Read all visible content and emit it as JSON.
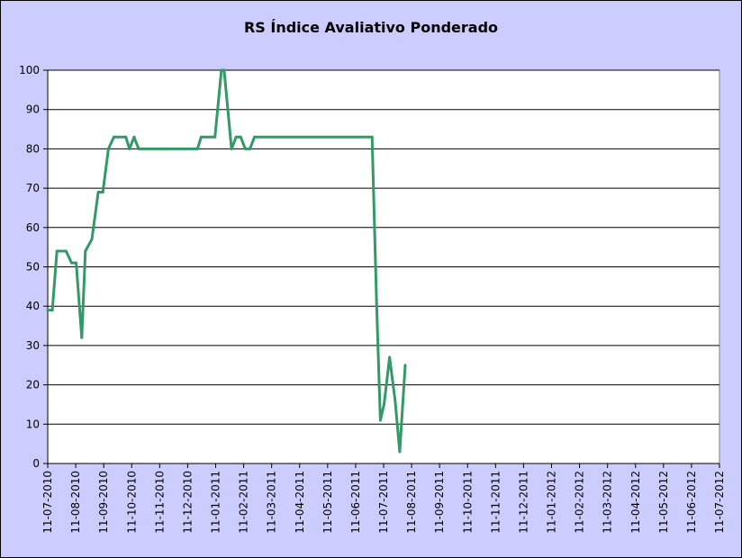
{
  "chart_data": {
    "type": "line",
    "title": "RS Índice Avaliativo Ponderado",
    "xlabel": "",
    "ylabel": "",
    "ylim": [
      0,
      100
    ],
    "y_ticks": [
      0,
      10,
      20,
      30,
      40,
      50,
      60,
      70,
      80,
      90,
      100
    ],
    "x_range": [
      "2010-07-11",
      "2012-07-11"
    ],
    "x_tick_labels": [
      "11-07-2010",
      "11-08-2010",
      "11-09-2010",
      "11-10-2010",
      "11-11-2010",
      "11-12-2010",
      "11-01-2011",
      "11-02-2011",
      "11-03-2011",
      "11-04-2011",
      "11-05-2011",
      "11-06-2011",
      "11-07-2011",
      "11-08-2011",
      "11-09-2011",
      "11-10-2011",
      "11-11-2011",
      "11-12-2011",
      "11-01-2012",
      "11-02-2012",
      "11-03-2012",
      "11-04-2012",
      "11-05-2012",
      "11-06-2012",
      "11-07-2012"
    ],
    "grid": true,
    "legend": "none",
    "colors": {
      "line": "#339966",
      "plot_background": "#ffffff",
      "chart_background": "#ccccff",
      "gridline": "#000000"
    },
    "series": [
      {
        "values": [
          [
            "2010-07-11",
            39
          ],
          [
            "2010-07-16",
            39
          ],
          [
            "2010-07-21",
            54
          ],
          [
            "2010-07-31",
            54
          ],
          [
            "2010-08-06",
            51
          ],
          [
            "2010-08-11",
            51
          ],
          [
            "2010-08-17",
            32
          ],
          [
            "2010-08-21",
            54
          ],
          [
            "2010-08-28",
            57
          ],
          [
            "2010-09-04",
            69
          ],
          [
            "2010-09-09",
            69
          ],
          [
            "2010-09-15",
            80
          ],
          [
            "2010-09-21",
            83
          ],
          [
            "2010-10-04",
            83
          ],
          [
            "2010-10-08",
            80
          ],
          [
            "2010-10-13",
            83
          ],
          [
            "2010-10-18",
            80
          ],
          [
            "2010-11-11",
            80
          ],
          [
            "2010-12-21",
            80
          ],
          [
            "2010-12-25",
            83
          ],
          [
            "2011-01-09",
            83
          ],
          [
            "2011-01-16",
            100
          ],
          [
            "2011-01-19",
            100
          ],
          [
            "2011-01-27",
            80
          ],
          [
            "2011-02-01",
            83
          ],
          [
            "2011-02-06",
            83
          ],
          [
            "2011-02-11",
            80
          ],
          [
            "2011-02-16",
            80
          ],
          [
            "2011-02-21",
            83
          ],
          [
            "2011-06-29",
            83
          ],
          [
            "2011-07-04",
            40
          ],
          [
            "2011-07-08",
            11
          ],
          [
            "2011-07-12",
            15
          ],
          [
            "2011-07-18",
            27
          ],
          [
            "2011-07-24",
            16
          ],
          [
            "2011-07-29",
            3
          ],
          [
            "2011-08-04",
            25
          ]
        ]
      }
    ]
  }
}
